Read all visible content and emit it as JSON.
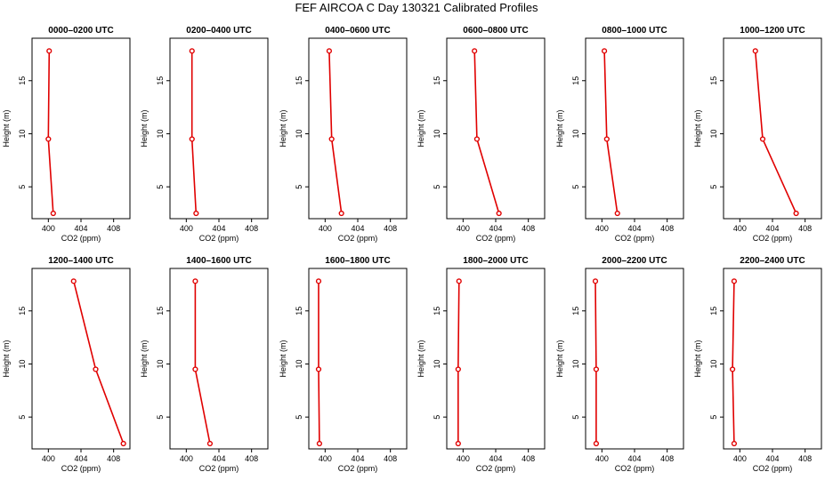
{
  "figure": {
    "title": "FEF AIRCOA C  Day 130321  Calibrated Profiles"
  },
  "colors": {
    "line": "#e00000",
    "marker": "#e00000",
    "axis": "#000000"
  },
  "chart_data": [
    {
      "type": "line",
      "title": "0000–0200 UTC",
      "xlabel": "CO2 (ppm)",
      "ylabel": "Height (m)",
      "xlim": [
        398,
        410
      ],
      "ylim": [
        2,
        19
      ],
      "xticks": [
        400,
        404,
        408
      ],
      "yticks": [
        5,
        10,
        15
      ],
      "series": [
        {
          "name": "profile",
          "x": [
            400.1,
            400.0,
            400.6
          ],
          "y": [
            17.8,
            9.5,
            2.5
          ]
        }
      ]
    },
    {
      "type": "line",
      "title": "0200–0400 UTC",
      "xlabel": "CO2 (ppm)",
      "ylabel": "Height (m)",
      "xlim": [
        398,
        410
      ],
      "ylim": [
        2,
        19
      ],
      "xticks": [
        400,
        404,
        408
      ],
      "yticks": [
        5,
        10,
        15
      ],
      "series": [
        {
          "name": "profile",
          "x": [
            400.7,
            400.7,
            401.2
          ],
          "y": [
            17.8,
            9.5,
            2.5
          ]
        }
      ]
    },
    {
      "type": "line",
      "title": "0400–0600 UTC",
      "xlabel": "CO2 (ppm)",
      "ylabel": "Height (m)",
      "xlim": [
        398,
        410
      ],
      "ylim": [
        2,
        19
      ],
      "xticks": [
        400,
        404,
        408
      ],
      "yticks": [
        5,
        10,
        15
      ],
      "series": [
        {
          "name": "profile",
          "x": [
            400.5,
            400.8,
            402.0
          ],
          "y": [
            17.8,
            9.5,
            2.5
          ]
        }
      ]
    },
    {
      "type": "line",
      "title": "0600–0800 UTC",
      "xlabel": "CO2 (ppm)",
      "ylabel": "Height (m)",
      "xlim": [
        398,
        410
      ],
      "ylim": [
        2,
        19
      ],
      "xticks": [
        400,
        404,
        408
      ],
      "yticks": [
        5,
        10,
        15
      ],
      "series": [
        {
          "name": "profile",
          "x": [
            401.4,
            401.7,
            404.4
          ],
          "y": [
            17.8,
            9.5,
            2.5
          ]
        }
      ]
    },
    {
      "type": "line",
      "title": "0800–1000 UTC",
      "xlabel": "CO2 (ppm)",
      "ylabel": "Height (m)",
      "xlim": [
        398,
        410
      ],
      "ylim": [
        2,
        19
      ],
      "xticks": [
        400,
        404,
        408
      ],
      "yticks": [
        5,
        10,
        15
      ],
      "series": [
        {
          "name": "profile",
          "x": [
            400.3,
            400.6,
            401.9
          ],
          "y": [
            17.8,
            9.5,
            2.5
          ]
        }
      ]
    },
    {
      "type": "line",
      "title": "1000–1200 UTC",
      "xlabel": "CO2 (ppm)",
      "ylabel": "Height (m)",
      "xlim": [
        398,
        410
      ],
      "ylim": [
        2,
        19
      ],
      "xticks": [
        400,
        404,
        408
      ],
      "yticks": [
        5,
        10,
        15
      ],
      "series": [
        {
          "name": "profile",
          "x": [
            401.9,
            402.8,
            406.9
          ],
          "y": [
            17.8,
            9.5,
            2.5
          ]
        }
      ]
    },
    {
      "type": "line",
      "title": "1200–1400 UTC",
      "xlabel": "CO2 (ppm)",
      "ylabel": "Height (m)",
      "xlim": [
        398,
        410
      ],
      "ylim": [
        2,
        19
      ],
      "xticks": [
        400,
        404,
        408
      ],
      "yticks": [
        5,
        10,
        15
      ],
      "series": [
        {
          "name": "profile",
          "x": [
            403.1,
            405.8,
            409.2
          ],
          "y": [
            17.8,
            9.5,
            2.5
          ]
        }
      ]
    },
    {
      "type": "line",
      "title": "1400–1600 UTC",
      "xlabel": "CO2 (ppm)",
      "ylabel": "Height (m)",
      "xlim": [
        398,
        410
      ],
      "ylim": [
        2,
        19
      ],
      "xticks": [
        400,
        404,
        408
      ],
      "yticks": [
        5,
        10,
        15
      ],
      "series": [
        {
          "name": "profile",
          "x": [
            401.1,
            401.1,
            402.9
          ],
          "y": [
            17.8,
            9.5,
            2.5
          ]
        }
      ]
    },
    {
      "type": "line",
      "title": "1600–1800 UTC",
      "xlabel": "CO2 (ppm)",
      "ylabel": "Height (m)",
      "xlim": [
        398,
        410
      ],
      "ylim": [
        2,
        19
      ],
      "xticks": [
        400,
        404,
        408
      ],
      "yticks": [
        5,
        10,
        15
      ],
      "series": [
        {
          "name": "profile",
          "x": [
            399.2,
            399.2,
            399.3
          ],
          "y": [
            17.8,
            9.5,
            2.5
          ]
        }
      ]
    },
    {
      "type": "line",
      "title": "1800–2000 UTC",
      "xlabel": "CO2 (ppm)",
      "ylabel": "Height (m)",
      "xlim": [
        398,
        410
      ],
      "ylim": [
        2,
        19
      ],
      "xticks": [
        400,
        404,
        408
      ],
      "yticks": [
        5,
        10,
        15
      ],
      "series": [
        {
          "name": "profile",
          "x": [
            399.5,
            399.4,
            399.4
          ],
          "y": [
            17.8,
            9.5,
            2.5
          ]
        }
      ]
    },
    {
      "type": "line",
      "title": "2000–2200 UTC",
      "xlabel": "CO2 (ppm)",
      "ylabel": "Height (m)",
      "xlim": [
        398,
        410
      ],
      "ylim": [
        2,
        19
      ],
      "xticks": [
        400,
        404,
        408
      ],
      "yticks": [
        5,
        10,
        15
      ],
      "series": [
        {
          "name": "profile",
          "x": [
            399.2,
            399.3,
            399.3
          ],
          "y": [
            17.8,
            9.5,
            2.5
          ]
        }
      ]
    },
    {
      "type": "line",
      "title": "2200–2400 UTC",
      "xlabel": "CO2 (ppm)",
      "ylabel": "Height (m)",
      "xlim": [
        398,
        410
      ],
      "ylim": [
        2,
        19
      ],
      "xticks": [
        400,
        404,
        408
      ],
      "yticks": [
        5,
        10,
        15
      ],
      "series": [
        {
          "name": "profile",
          "x": [
            399.3,
            399.1,
            399.3
          ],
          "y": [
            17.8,
            9.5,
            2.5
          ]
        }
      ]
    }
  ]
}
